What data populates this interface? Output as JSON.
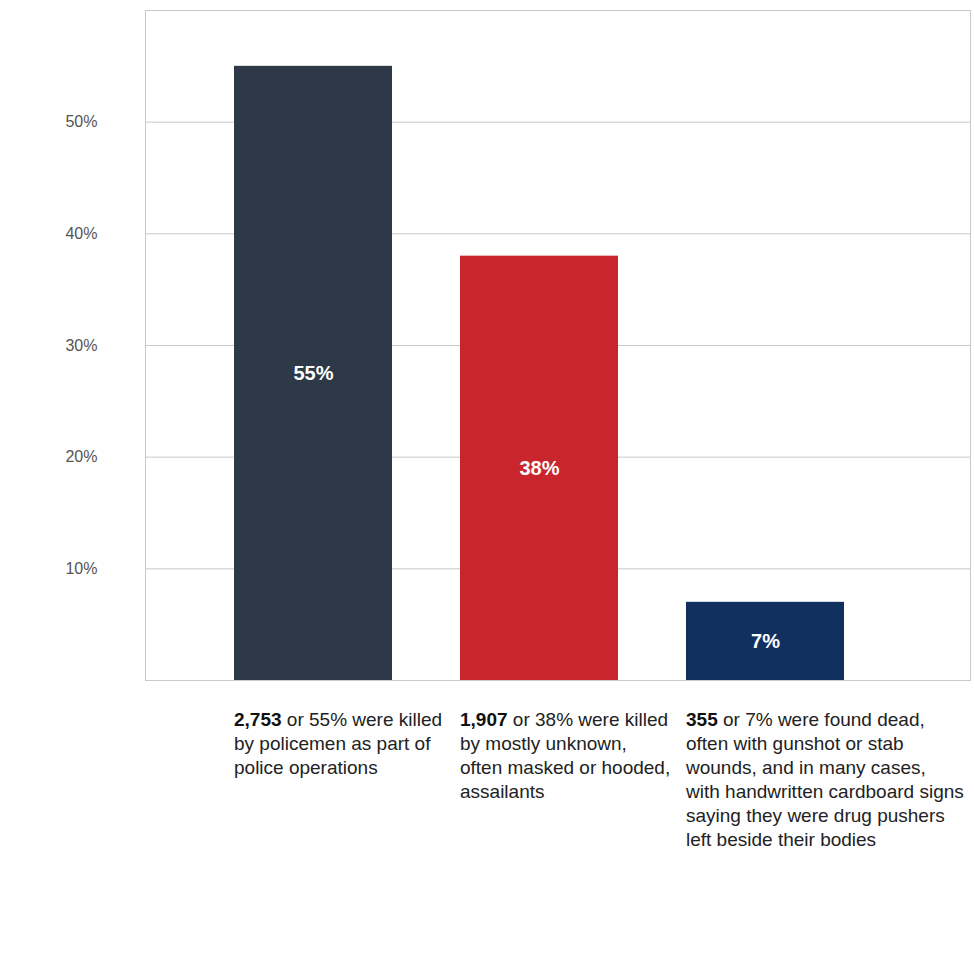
{
  "chart_data": {
    "type": "bar",
    "categories": [
      "2,753 or 55% were killed by policemen as part of police operations",
      "1,907 or 38% were killed by mostly unknown, often masked or hooded, assailants",
      "355 or 7% were found dead, often with gunshot or stab wounds, and in many cases, with handwritten cardboard signs saying they were drug pushers left beside their bodies"
    ],
    "values": [
      55,
      38,
      7
    ],
    "value_labels": [
      "55%",
      "38%",
      "7%"
    ],
    "colors": [
      "#2e3947",
      "#c9252d",
      "#12305f"
    ],
    "ylim": [
      0,
      60
    ],
    "yticks": [
      {
        "value": 10,
        "label": "10%"
      },
      {
        "value": 20,
        "label": "20%"
      },
      {
        "value": 30,
        "label": "30%"
      },
      {
        "value": 40,
        "label": "40%"
      },
      {
        "value": 50,
        "label": "50%"
      }
    ],
    "grid": true,
    "data_labels": true
  }
}
